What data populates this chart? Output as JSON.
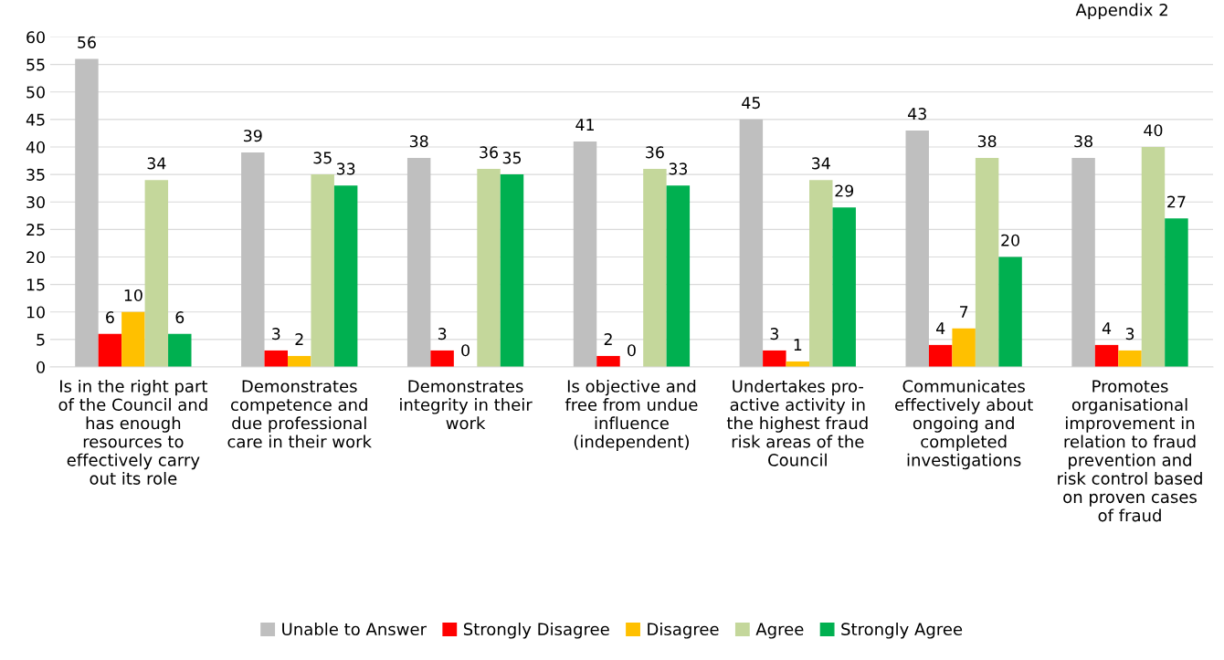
{
  "chart_data": {
    "type": "bar",
    "categories": [
      "Is in the right part\nof the Council and\nhas enough\nresources to\neffectively carry\nout its role",
      "Demonstrates\ncompetence and\ndue professional\ncare in their work",
      "Demonstrates\nintegrity in their\nwork",
      "Is objective and\nfree from undue\ninfluence\n(independent)",
      "Undertakes pro-\nactive activity in\nthe highest fraud\nrisk areas of the\nCouncil",
      "Communicates\neffectively about\nongoing and\ncompleted\ninvestigations",
      "Promotes\norganisational\nimprovement in\nrelation to fraud\nprevention and\nrisk control based\non proven cases\nof fraud"
    ],
    "series": [
      {
        "name": "Unable to Answer",
        "color": "#bfbfbf",
        "values": [
          56,
          39,
          38,
          41,
          45,
          43,
          38
        ]
      },
      {
        "name": "Strongly Disagree",
        "color": "#ff0000",
        "values": [
          6,
          3,
          3,
          2,
          3,
          4,
          4
        ]
      },
      {
        "name": "Disagree",
        "color": "#ffc000",
        "values": [
          10,
          2,
          0,
          0,
          1,
          7,
          3
        ]
      },
      {
        "name": "Agree",
        "color": "#c4d79b",
        "values": [
          34,
          35,
          36,
          36,
          34,
          38,
          40
        ]
      },
      {
        "name": "Strongly Agree",
        "color": "#00b050",
        "values": [
          6,
          33,
          35,
          33,
          29,
          20,
          27
        ]
      }
    ],
    "ylim": [
      0,
      60
    ],
    "yticks": [
      0,
      5,
      10,
      15,
      20,
      25,
      30,
      35,
      40,
      45,
      50,
      55,
      60
    ],
    "grid": "y",
    "legend": "bottom",
    "data_labels": true,
    "annotations": [
      "Appendix 2"
    ]
  }
}
